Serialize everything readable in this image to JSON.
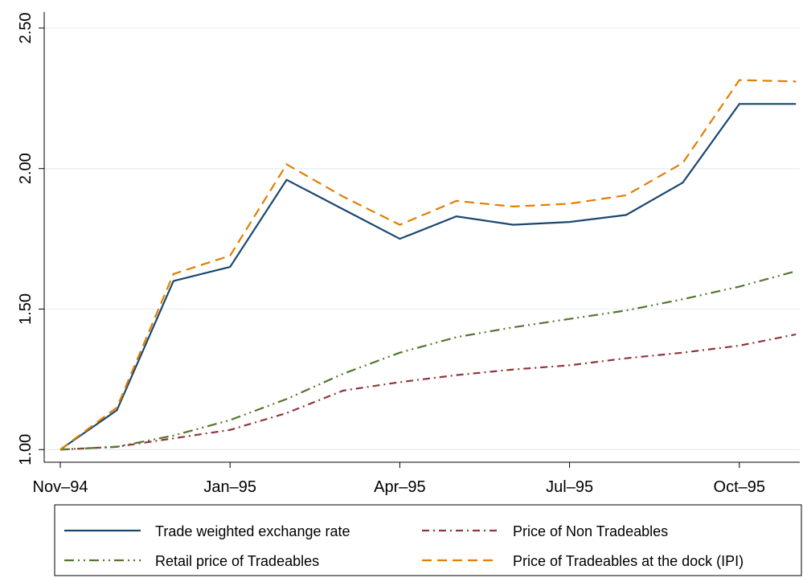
{
  "chart_data": {
    "type": "line",
    "categories": [
      "Nov–94",
      null,
      null,
      "Jan–95",
      null,
      null,
      "Apr–95",
      null,
      null,
      "Jul–95",
      null,
      null,
      "Oct–95",
      null
    ],
    "series": [
      {
        "name": "Trade weighted exchange rate",
        "color": "#1a476f",
        "style": "solid",
        "values": [
          1.0,
          1.14,
          1.6,
          1.65,
          1.96,
          1.855,
          1.75,
          1.83,
          1.8,
          1.81,
          1.835,
          1.95,
          2.23,
          2.23
        ]
      },
      {
        "name": "Price of Non Tradeables",
        "color": "#90353b",
        "style": "dashdot",
        "values": [
          1.0,
          1.01,
          1.04,
          1.07,
          1.13,
          1.21,
          1.24,
          1.265,
          1.285,
          1.3,
          1.325,
          1.345,
          1.37,
          1.41
        ]
      },
      {
        "name": "Retail price of Tradeables",
        "color": "#55752f",
        "style": "longdashdot",
        "values": [
          1.0,
          1.01,
          1.05,
          1.105,
          1.18,
          1.27,
          1.345,
          1.4,
          1.435,
          1.465,
          1.495,
          1.535,
          1.58,
          1.635
        ]
      },
      {
        "name": "Price of Tradeables at the dock (IPI)",
        "color": "#e37e00",
        "style": "dashed",
        "values": [
          1.0,
          1.15,
          1.625,
          1.69,
          2.015,
          1.9,
          1.8,
          1.885,
          1.865,
          1.875,
          1.905,
          2.02,
          2.315,
          2.31
        ]
      }
    ],
    "ylim": [
      0.955,
      2.557
    ],
    "yticks": [
      {
        "value": 1,
        "label": "1.00"
      },
      {
        "value": 1.5,
        "label": "1.50"
      },
      {
        "value": 2,
        "label": "2.00"
      },
      {
        "value": 2.5,
        "label": "2.50"
      }
    ],
    "grid": true
  }
}
